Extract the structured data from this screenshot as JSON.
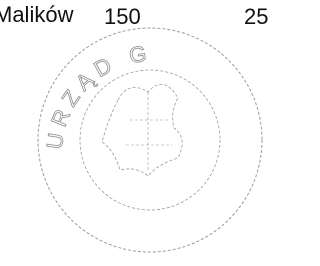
{
  "address": {
    "street": "Malików",
    "number": "150"
  },
  "page_fragment": "25",
  "stamp": {
    "text": "URZĄD G"
  }
}
